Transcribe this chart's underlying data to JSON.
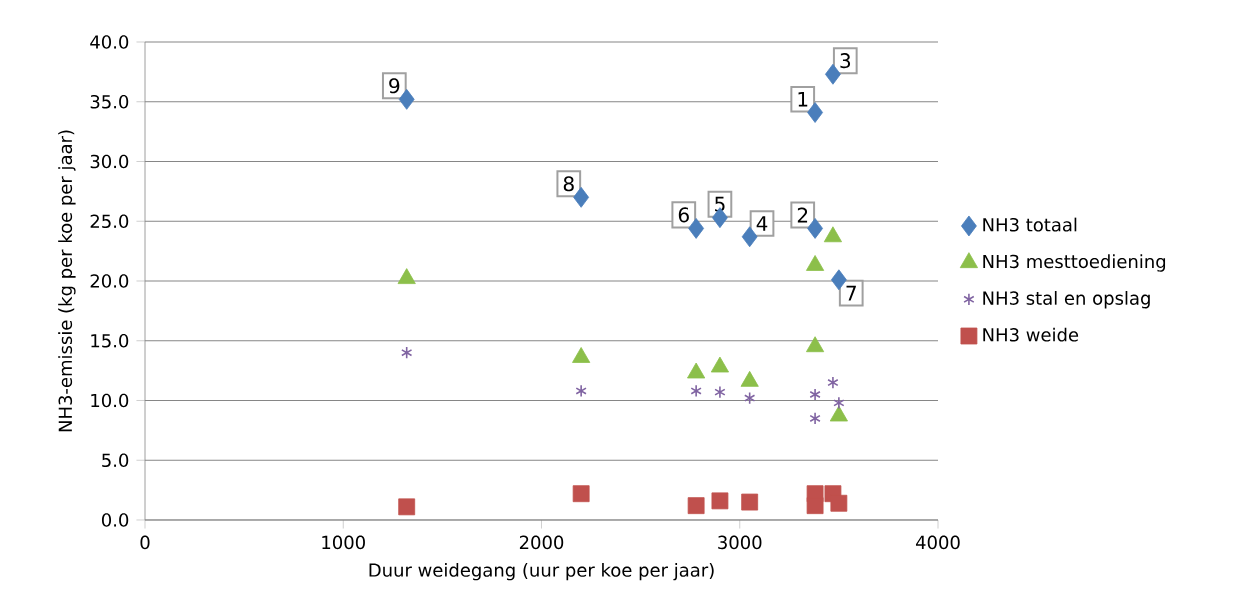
{
  "chart_data": {
    "type": "scatter",
    "xlabel": "Duur weidegang (uur per koe per jaar)",
    "ylabel": "NH3-emissie (kg per koe per jaar)",
    "xlim": [
      0,
      4000
    ],
    "xticks": [
      0,
      1000,
      2000,
      3000,
      4000
    ],
    "ylim": [
      0,
      40
    ],
    "yticks": [
      {
        "value": 0,
        "label": "0.0"
      },
      {
        "value": 5,
        "label": "5.0"
      },
      {
        "value": 10,
        "label": "10.0"
      },
      {
        "value": 15,
        "label": "15.0"
      },
      {
        "value": 20,
        "label": "20.0"
      },
      {
        "value": 25,
        "label": "25.0"
      },
      {
        "value": 30,
        "label": "30.0"
      },
      {
        "value": 35,
        "label": "35.0"
      },
      {
        "value": 40,
        "label": "40.0"
      }
    ],
    "grid": "y",
    "legend": "right",
    "x": [
      3380,
      3380,
      3470,
      3050,
      2900,
      2780,
      3500,
      2200,
      1320
    ],
    "series": [
      {
        "name": "NH3 totaal",
        "color": "#4a7ebb",
        "marker": "diamond",
        "values": [
          34.1,
          24.4,
          37.3,
          23.7,
          25.3,
          24.4,
          20.1,
          27.0,
          35.2
        ]
      },
      {
        "name": "NH3 mesttoediening",
        "color": "#8cbf4a",
        "marker": "triangle",
        "values": [
          21.3,
          14.5,
          23.7,
          11.6,
          12.8,
          12.3,
          8.7,
          13.6,
          20.2
        ]
      },
      {
        "name": "NH3 stal en opslag",
        "color": "#8064a2",
        "marker": "cross",
        "values": [
          10.5,
          8.5,
          11.5,
          10.2,
          10.7,
          10.8,
          9.8,
          10.8,
          14.0
        ]
      },
      {
        "name": "NH3 weide",
        "color": "#c0504d",
        "marker": "square",
        "values": [
          2.2,
          1.2,
          2.2,
          1.5,
          1.6,
          1.2,
          1.4,
          2.2,
          1.1
        ]
      }
    ],
    "annotations": [
      {
        "text": "1",
        "x": 3380,
        "y": 34.1
      },
      {
        "text": "2",
        "x": 3380,
        "y": 24.4
      },
      {
        "text": "3",
        "x": 3470,
        "y": 37.3
      },
      {
        "text": "4",
        "x": 3050,
        "y": 23.7
      },
      {
        "text": "5",
        "x": 2900,
        "y": 25.3
      },
      {
        "text": "6",
        "x": 2780,
        "y": 24.4
      },
      {
        "text": "7",
        "x": 3500,
        "y": 20.1
      },
      {
        "text": "8",
        "x": 2200,
        "y": 27.0
      },
      {
        "text": "9",
        "x": 1320,
        "y": 35.2
      }
    ]
  }
}
